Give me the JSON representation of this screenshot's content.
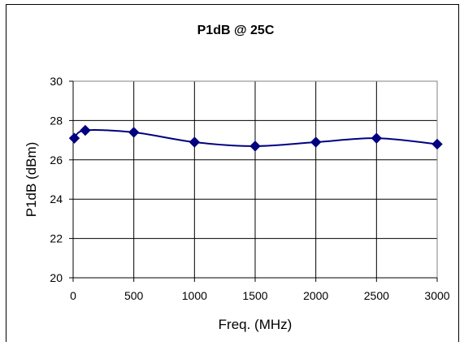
{
  "chart_data": {
    "type": "line",
    "title": "P1dB @ 25C",
    "xlabel": "Freq. (MHz)",
    "ylabel": "P1dB (dBm)",
    "xlim": [
      0,
      3000
    ],
    "ylim": [
      20,
      30
    ],
    "x_ticks": [
      0,
      500,
      1000,
      1500,
      2000,
      2500,
      3000
    ],
    "y_ticks": [
      20,
      22,
      24,
      26,
      28,
      30
    ],
    "grid": true,
    "legend": "none",
    "series": [
      {
        "color": "#000080",
        "marker": "diamond",
        "smooth": true,
        "points": [
          {
            "x": 10,
            "y": 27.1
          },
          {
            "x": 100,
            "y": 27.5
          },
          {
            "x": 500,
            "y": 27.4
          },
          {
            "x": 1000,
            "y": 26.9
          },
          {
            "x": 1500,
            "y": 26.7
          },
          {
            "x": 2000,
            "y": 26.9
          },
          {
            "x": 2500,
            "y": 27.1
          },
          {
            "x": 3000,
            "y": 26.8
          }
        ]
      }
    ]
  }
}
